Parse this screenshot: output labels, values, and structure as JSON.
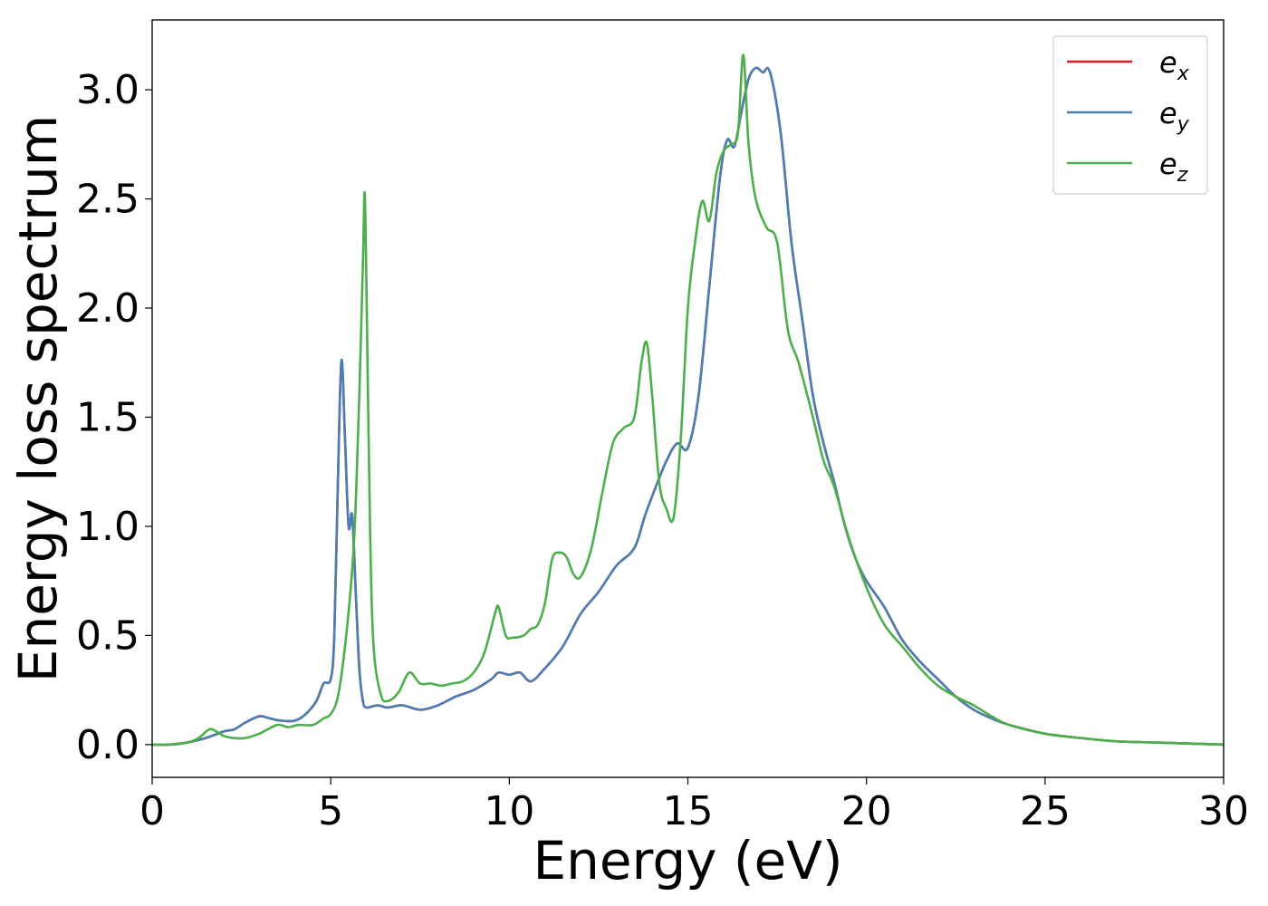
{
  "chart_data": {
    "type": "line",
    "xlabel": "Energy (eV)",
    "ylabel": "Energy loss spectrum",
    "xlim": [
      0,
      30
    ],
    "ylim": [
      -0.15,
      3.32
    ],
    "xticks": [
      0,
      5,
      10,
      15,
      20,
      25,
      30
    ],
    "xtick_labels": [
      "0",
      "5",
      "10",
      "15",
      "20",
      "25",
      "30"
    ],
    "yticks": [
      0.0,
      0.5,
      1.0,
      1.5,
      2.0,
      2.5,
      3.0
    ],
    "ytick_labels": [
      "0.0",
      "0.5",
      "1.0",
      "1.5",
      "2.0",
      "2.5",
      "3.0"
    ],
    "grid": false,
    "legend_position": "top-right",
    "series": [
      {
        "name": "e_x",
        "legend_main": "e",
        "legend_sub": "x",
        "color": "#e41a1c",
        "x": [
          0,
          0.5,
          1.0,
          1.5,
          2.0,
          2.3,
          2.6,
          3.0,
          3.3,
          3.6,
          4.0,
          4.3,
          4.6,
          4.8,
          5.0,
          5.1,
          5.2,
          5.3,
          5.4,
          5.5,
          5.6,
          5.7,
          5.8,
          5.9,
          6.0,
          6.3,
          6.6,
          7.0,
          7.5,
          8.0,
          8.5,
          9.0,
          9.5,
          9.7,
          10.0,
          10.3,
          10.6,
          11.0,
          11.5,
          12.0,
          12.5,
          13.0,
          13.5,
          13.8,
          14.1,
          14.4,
          14.7,
          15.0,
          15.3,
          15.6,
          15.9,
          16.1,
          16.3,
          16.5,
          16.7,
          16.9,
          17.1,
          17.3,
          17.6,
          17.9,
          18.2,
          18.5,
          18.8,
          19.1,
          19.4,
          19.7,
          20.0,
          20.5,
          21.0,
          21.5,
          22.0,
          22.5,
          23.0,
          23.5,
          24.0,
          25.0,
          26.0,
          27.0,
          28.0,
          30.0
        ],
        "y": [
          0.0,
          0.0,
          0.01,
          0.03,
          0.06,
          0.07,
          0.1,
          0.13,
          0.12,
          0.11,
          0.11,
          0.14,
          0.2,
          0.28,
          0.3,
          0.5,
          1.2,
          1.76,
          1.4,
          1.0,
          1.05,
          0.7,
          0.35,
          0.2,
          0.17,
          0.18,
          0.17,
          0.18,
          0.16,
          0.18,
          0.22,
          0.25,
          0.3,
          0.33,
          0.32,
          0.33,
          0.29,
          0.35,
          0.45,
          0.6,
          0.7,
          0.82,
          0.9,
          1.05,
          1.18,
          1.3,
          1.38,
          1.36,
          1.6,
          2.1,
          2.6,
          2.77,
          2.74,
          2.9,
          3.05,
          3.1,
          3.08,
          3.08,
          2.8,
          2.3,
          1.95,
          1.6,
          1.38,
          1.2,
          1.0,
          0.85,
          0.75,
          0.63,
          0.48,
          0.38,
          0.3,
          0.22,
          0.16,
          0.12,
          0.09,
          0.05,
          0.03,
          0.015,
          0.01,
          0.0
        ]
      },
      {
        "name": "e_y",
        "legend_main": "e",
        "legend_sub": "y",
        "color": "#4a7fb5",
        "x": [
          0,
          0.5,
          1.0,
          1.5,
          2.0,
          2.3,
          2.6,
          3.0,
          3.3,
          3.6,
          4.0,
          4.3,
          4.6,
          4.8,
          5.0,
          5.1,
          5.2,
          5.3,
          5.4,
          5.5,
          5.6,
          5.7,
          5.8,
          5.9,
          6.0,
          6.3,
          6.6,
          7.0,
          7.5,
          8.0,
          8.5,
          9.0,
          9.5,
          9.7,
          10.0,
          10.3,
          10.6,
          11.0,
          11.5,
          12.0,
          12.5,
          13.0,
          13.5,
          13.8,
          14.1,
          14.4,
          14.7,
          15.0,
          15.3,
          15.6,
          15.9,
          16.1,
          16.3,
          16.5,
          16.7,
          16.9,
          17.1,
          17.3,
          17.6,
          17.9,
          18.2,
          18.5,
          18.8,
          19.1,
          19.4,
          19.7,
          20.0,
          20.5,
          21.0,
          21.5,
          22.0,
          22.5,
          23.0,
          23.5,
          24.0,
          25.0,
          26.0,
          27.0,
          28.0,
          30.0
        ],
        "y": [
          0.0,
          0.0,
          0.01,
          0.03,
          0.06,
          0.07,
          0.1,
          0.13,
          0.12,
          0.11,
          0.11,
          0.14,
          0.2,
          0.28,
          0.3,
          0.5,
          1.2,
          1.76,
          1.4,
          1.0,
          1.05,
          0.7,
          0.35,
          0.2,
          0.17,
          0.18,
          0.17,
          0.18,
          0.16,
          0.18,
          0.22,
          0.25,
          0.3,
          0.33,
          0.32,
          0.33,
          0.29,
          0.35,
          0.45,
          0.6,
          0.7,
          0.82,
          0.9,
          1.05,
          1.18,
          1.3,
          1.38,
          1.36,
          1.6,
          2.1,
          2.6,
          2.77,
          2.74,
          2.9,
          3.05,
          3.1,
          3.08,
          3.08,
          2.8,
          2.3,
          1.95,
          1.6,
          1.38,
          1.2,
          1.0,
          0.85,
          0.75,
          0.63,
          0.48,
          0.38,
          0.3,
          0.22,
          0.16,
          0.12,
          0.09,
          0.05,
          0.03,
          0.015,
          0.01,
          0.0
        ]
      },
      {
        "name": "e_z",
        "legend_main": "e",
        "legend_sub": "z",
        "color": "#4daf4a",
        "x": [
          0,
          0.5,
          1.0,
          1.3,
          1.6,
          1.8,
          2.0,
          2.3,
          2.6,
          3.0,
          3.5,
          3.8,
          4.1,
          4.5,
          4.8,
          5.0,
          5.2,
          5.4,
          5.6,
          5.7,
          5.8,
          5.9,
          5.95,
          6.0,
          6.1,
          6.2,
          6.4,
          6.6,
          6.9,
          7.2,
          7.5,
          7.8,
          8.1,
          8.4,
          8.7,
          9.0,
          9.3,
          9.6,
          9.7,
          9.9,
          10.1,
          10.4,
          10.6,
          10.8,
          11.0,
          11.2,
          11.4,
          11.6,
          11.8,
          12.0,
          12.3,
          12.6,
          12.9,
          13.2,
          13.5,
          13.7,
          13.85,
          14.0,
          14.2,
          14.4,
          14.6,
          14.8,
          15.0,
          15.2,
          15.4,
          15.6,
          15.8,
          16.0,
          16.2,
          16.4,
          16.55,
          16.7,
          16.9,
          17.2,
          17.5,
          17.8,
          18.1,
          18.5,
          18.8,
          19.1,
          19.5,
          20.0,
          20.5,
          21.0,
          21.5,
          22.0,
          22.5,
          23.0,
          23.5,
          24.0,
          25.0,
          26.0,
          27.0,
          28.0,
          30.0
        ],
        "y": [
          0.0,
          0.0,
          0.01,
          0.03,
          0.07,
          0.06,
          0.04,
          0.03,
          0.03,
          0.05,
          0.09,
          0.08,
          0.09,
          0.09,
          0.12,
          0.14,
          0.22,
          0.45,
          0.8,
          1.1,
          1.6,
          2.2,
          2.53,
          2.1,
          1.0,
          0.45,
          0.23,
          0.2,
          0.24,
          0.33,
          0.28,
          0.28,
          0.27,
          0.28,
          0.29,
          0.33,
          0.42,
          0.6,
          0.63,
          0.5,
          0.49,
          0.5,
          0.53,
          0.55,
          0.65,
          0.85,
          0.88,
          0.86,
          0.78,
          0.77,
          0.9,
          1.15,
          1.38,
          1.45,
          1.5,
          1.75,
          1.84,
          1.6,
          1.2,
          1.08,
          1.04,
          1.4,
          2.0,
          2.3,
          2.49,
          2.4,
          2.62,
          2.72,
          2.75,
          2.8,
          3.16,
          2.75,
          2.5,
          2.37,
          2.3,
          1.9,
          1.75,
          1.5,
          1.3,
          1.18,
          0.95,
          0.72,
          0.55,
          0.45,
          0.35,
          0.27,
          0.22,
          0.18,
          0.13,
          0.09,
          0.05,
          0.03,
          0.015,
          0.01,
          0.0
        ]
      }
    ]
  }
}
